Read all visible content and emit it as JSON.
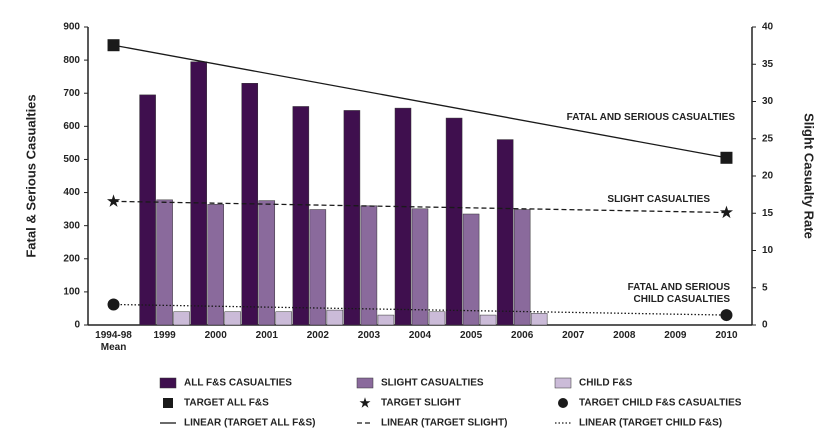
{
  "chart_data": {
    "type": "bar",
    "ylabel": "Fatal & Serious Casualties",
    "y2label": "Slight Casualty Rate",
    "categories": [
      "1994-98\nMean",
      "1999",
      "2000",
      "2001",
      "2002",
      "2003",
      "2004",
      "2005",
      "2006",
      "2007",
      "2008",
      "2009",
      "2010"
    ],
    "ylim": [
      0,
      900
    ],
    "yticks": [
      0,
      100,
      200,
      300,
      400,
      500,
      600,
      700,
      800,
      900
    ],
    "y2lim": [
      0,
      40
    ],
    "y2ticks": [
      0,
      5,
      10,
      15,
      20,
      25,
      30,
      35,
      40
    ],
    "series": [
      {
        "name": "ALL F&S CASUALTIES",
        "color": "#3f0f4e",
        "values": [
          null,
          695,
          795,
          730,
          660,
          648,
          655,
          625,
          560,
          null,
          null,
          null,
          null
        ]
      },
      {
        "name": "SLIGHT CASUALTIES",
        "color": "#8a6a9c",
        "axis": "y2",
        "values": [
          null,
          16.8,
          16.2,
          16.7,
          15.5,
          16.0,
          15.6,
          14.9,
          15.5,
          null,
          null,
          null,
          null
        ]
      },
      {
        "name": "CHILD F&S",
        "color": "#cbbbd8",
        "values": [
          null,
          40,
          40,
          40,
          45,
          30,
          40,
          30,
          35,
          null,
          null,
          null,
          null
        ]
      }
    ],
    "targets": [
      {
        "name": "TARGET ALL F&S",
        "color": "#1a1a1a",
        "marker": "square",
        "x": [
          "1994-98\nMean",
          "2010"
        ],
        "values": [
          845,
          505
        ],
        "trend": {
          "name": "LINEAR (TARGET ALL F&S)",
          "dash": "solid"
        }
      },
      {
        "name": "TARGET SLIGHT",
        "color": "#1a1a1a",
        "marker": "star",
        "axis": "y2",
        "x": [
          "1994-98\nMean",
          "2010"
        ],
        "values": [
          16.6,
          15.1
        ],
        "trend": {
          "name": "LINEAR (TARGET SLIGHT)",
          "dash": "dashed"
        }
      },
      {
        "name": "TARGET CHILD F&S CASUALTIES",
        "color": "#1a1a1a",
        "marker": "circle",
        "x": [
          "1994-98\nMean",
          "2010"
        ],
        "values": [
          62,
          30
        ],
        "trend": {
          "name": "LINEAR (TARGET CHILD F&S)",
          "dash": "dotted"
        }
      }
    ],
    "annotations": [
      "FATAL AND SERIOUS CASUALTIES",
      "SLIGHT CASUALTIES",
      "FATAL AND SERIOUS\nCHILD CASUALTIES"
    ]
  }
}
